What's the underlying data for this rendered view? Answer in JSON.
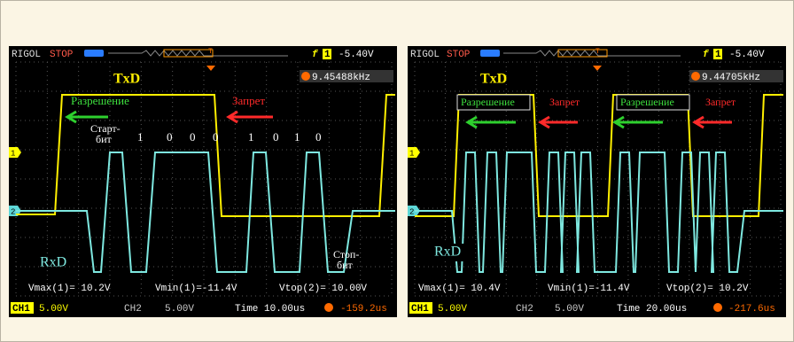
{
  "panels": [
    {
      "brand": "RIGOL",
      "state": "STOP",
      "trigger_marker": "T",
      "trigger_channel": "1",
      "trigger_level": "-5.40V",
      "frequency": "9.45488kHz",
      "channel_markers": [
        "1",
        "2"
      ],
      "txd": "TxD",
      "rxd": "RxD",
      "enable": [
        "Разрешение"
      ],
      "disable": [
        "Запрет"
      ],
      "start_bit": [
        "Старт-",
        "бит"
      ],
      "stop_bit": [
        "Стоп-",
        "бит"
      ],
      "bits": [
        "1",
        "0",
        "0",
        "0",
        "1",
        "0",
        "1",
        "0"
      ],
      "measurements": [
        "Vmax(1)= 10.2V",
        "Vmin(1)=-11.4V",
        "Vtop(2)= 10.00V"
      ],
      "footer": {
        "ch1": "CH1",
        "ch1_scale": "5.00V",
        "ch2": "CH2",
        "ch2_scale": "5.00V",
        "timebase": "Time 10.00us",
        "offset": "-159.2us"
      }
    },
    {
      "brand": "RIGOL",
      "state": "STOP",
      "trigger_marker": "T",
      "trigger_channel": "1",
      "trigger_level": "-5.40V",
      "frequency": "9.44705kHz",
      "channel_markers": [
        "1",
        "2"
      ],
      "txd": "TxD",
      "rxd": "RxD",
      "enable": [
        "Разрешение",
        "Разрешение"
      ],
      "disable": [
        "Запрет",
        "Запрет"
      ],
      "measurements": [
        "Vmax(1)= 10.4V",
        "Vmin(1)=-11.4V",
        "Vtop(2)= 10.2V"
      ],
      "footer": {
        "ch1": "CH1",
        "ch1_scale": "5.00V",
        "ch2": "CH2",
        "ch2_scale": "5.00V",
        "timebase": "Time 20.00us",
        "offset": "-217.6us"
      }
    }
  ]
}
